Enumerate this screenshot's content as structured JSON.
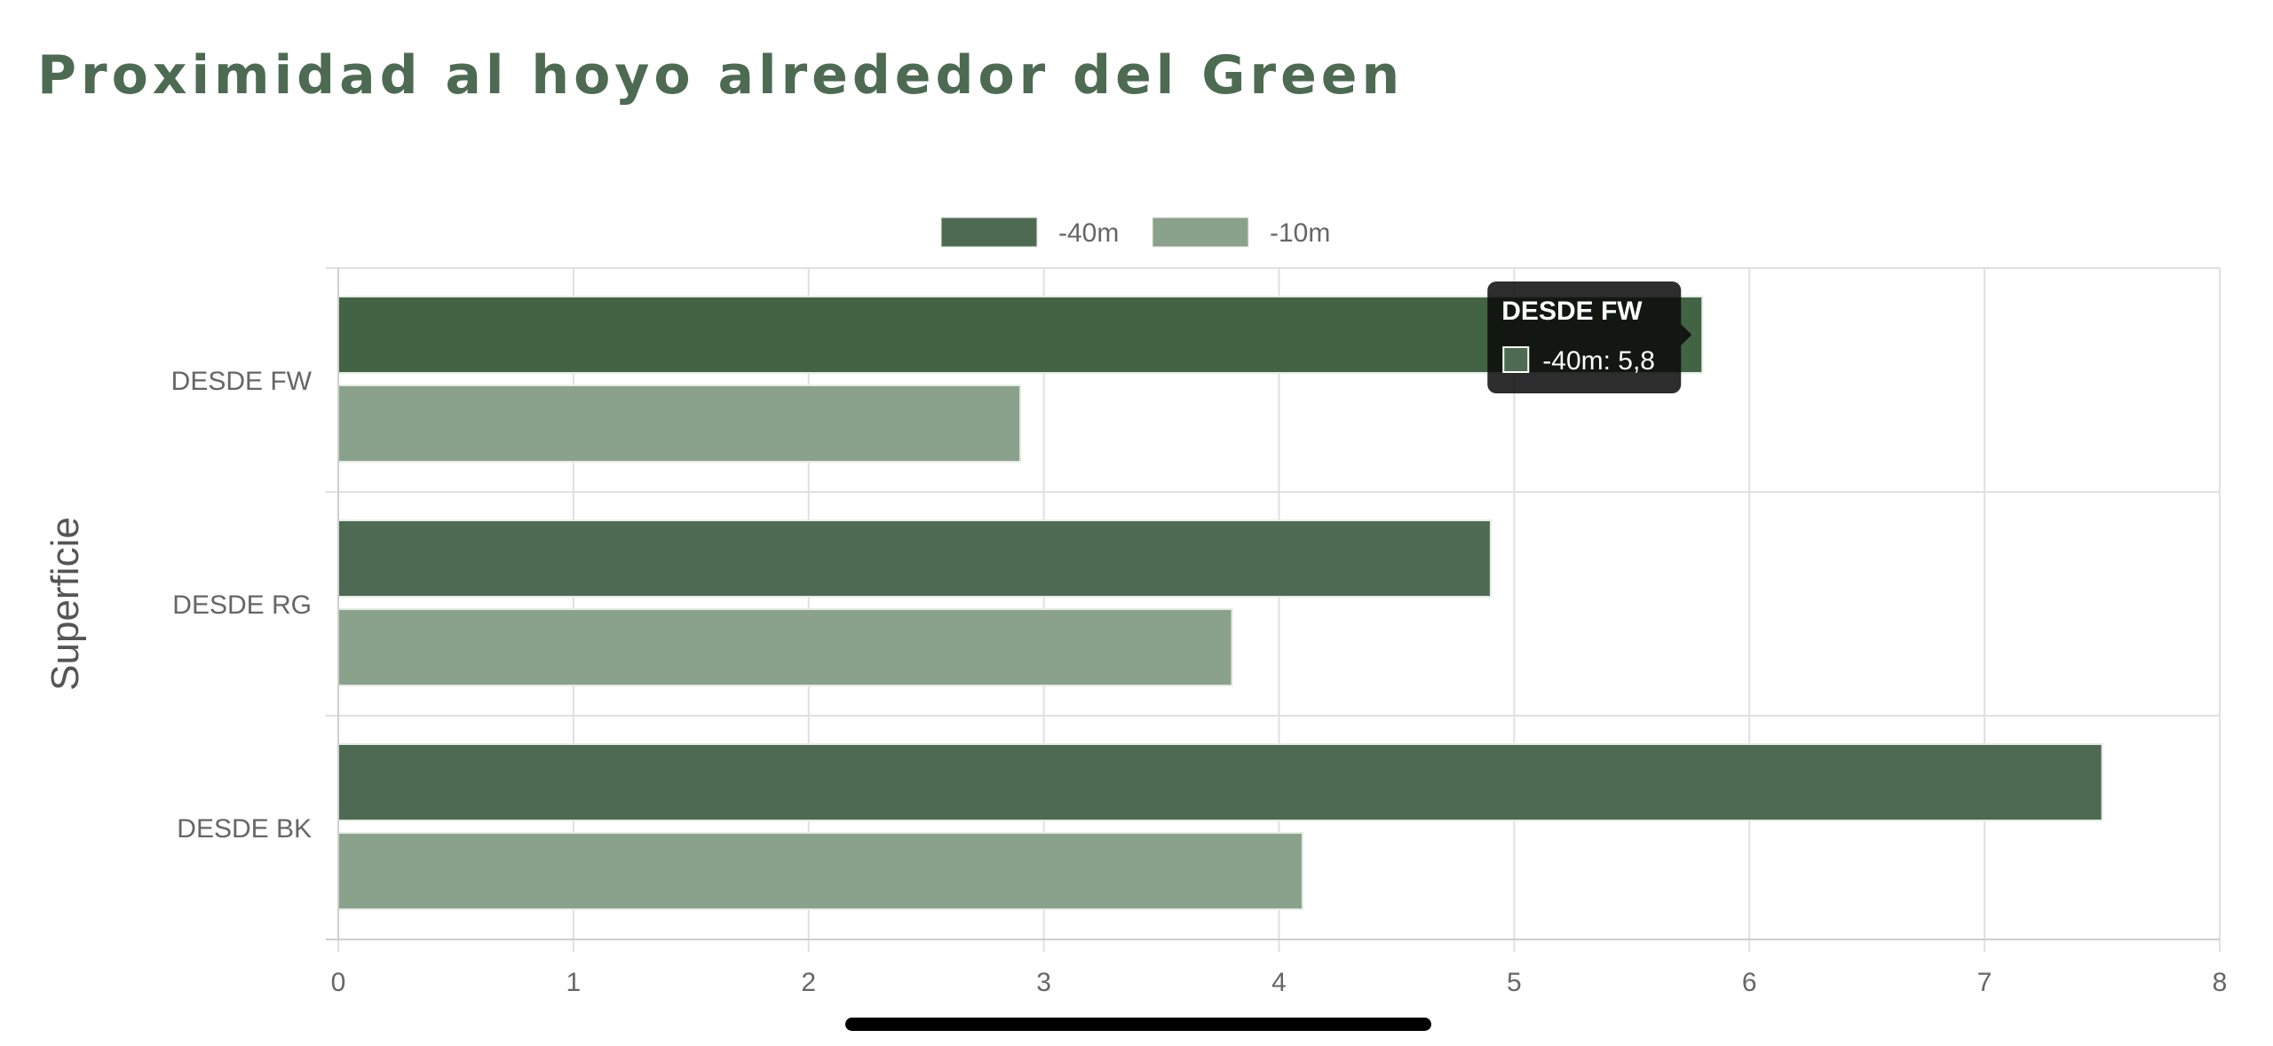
{
  "page": {
    "title": "Proximidad al hoyo alrededor del Green"
  },
  "chart_data": {
    "type": "bar",
    "orientation": "horizontal",
    "categories": [
      "DESDE FW",
      "DESDE RG",
      "DESDE BK"
    ],
    "series": [
      {
        "name": "-40m",
        "values": [
          5.8,
          4.9,
          7.5
        ],
        "color": "#4f6a52"
      },
      {
        "name": "-10m",
        "values": [
          2.9,
          3.8,
          4.1
        ],
        "color": "#8aa28b"
      }
    ],
    "xlabel": "",
    "ylabel": "Superficie",
    "xlim": [
      0,
      8
    ],
    "x_ticks": [
      "0",
      "1",
      "2",
      "3",
      "4",
      "5",
      "6",
      "7",
      "8"
    ],
    "grid": true,
    "legend_position": "top-center",
    "highlight_color": "#436444",
    "tooltip": {
      "title": "DESDE FW",
      "series": "-40m",
      "value_label": "5,8"
    }
  }
}
